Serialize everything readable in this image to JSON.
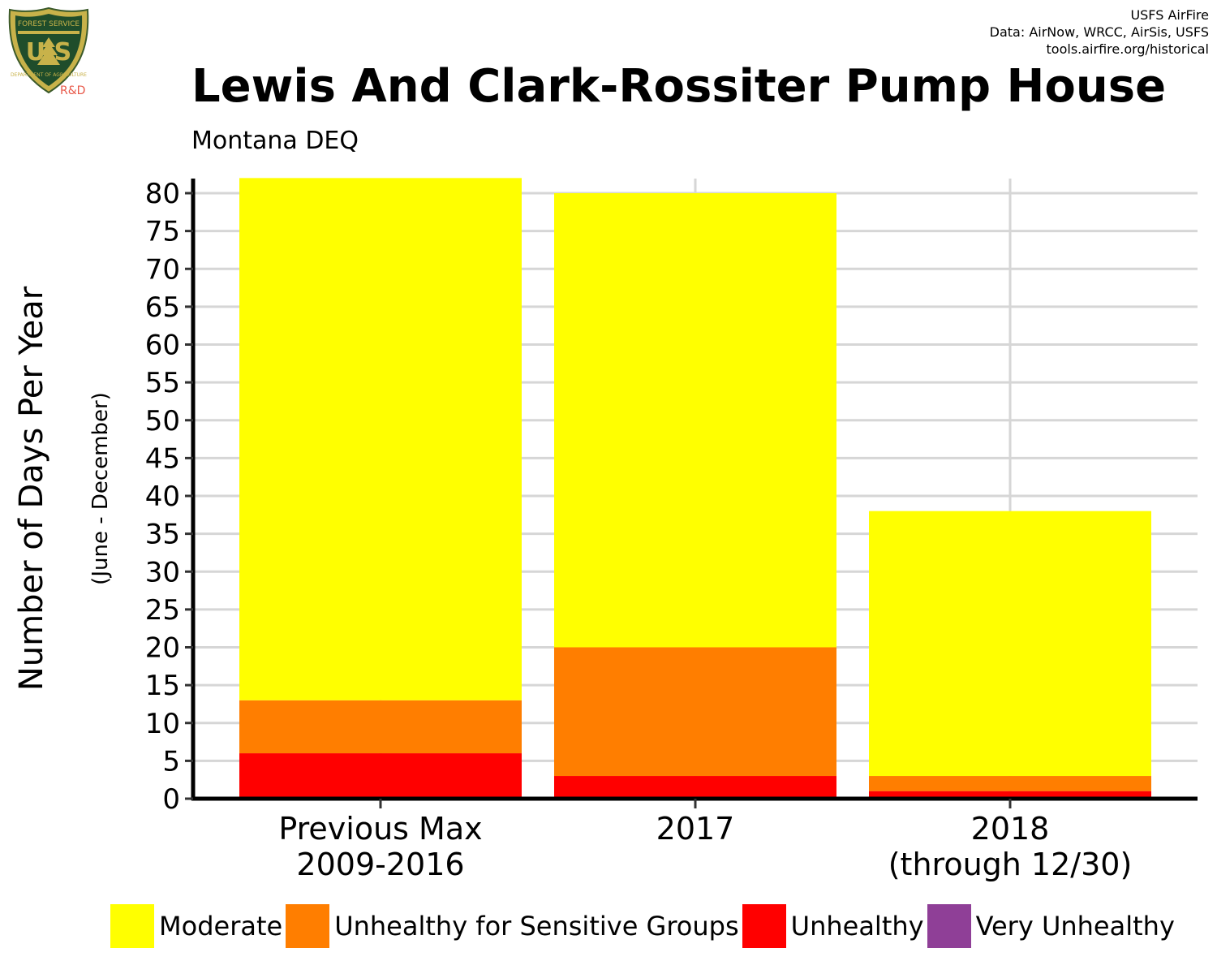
{
  "header": {
    "credits": [
      "USFS AirFire",
      "Data: AirNow, WRCC, AirSis, USFS",
      "tools.airfire.org/historical"
    ],
    "logo_text": "U S",
    "logo_tag": "R&D",
    "logo_ring_top": "FOREST SERVICE",
    "logo_ring_bottom": "DEPARTMENT OF AGRICULTURE"
  },
  "chart_data": {
    "type": "bar",
    "stacked": true,
    "title": "Lewis And Clark-Rossiter Pump House",
    "subtitle": "Montana DEQ",
    "ylabel": "Number of Days Per Year",
    "ylabel_sub": "(June - December)",
    "ylim": [
      0,
      82
    ],
    "yticks": [
      0,
      5,
      10,
      15,
      20,
      25,
      30,
      35,
      40,
      45,
      50,
      55,
      60,
      65,
      70,
      75,
      80
    ],
    "grid": true,
    "categories": [
      [
        "Previous Max",
        "2009-2016"
      ],
      [
        "2017"
      ],
      [
        "2018",
        "(through 12/30)"
      ]
    ],
    "series": [
      {
        "name": "Unhealthy",
        "color": "#ff0000",
        "values": [
          6,
          3,
          1
        ]
      },
      {
        "name": "Unhealthy for Sensitive Groups",
        "color": "#ff7e00",
        "values": [
          7,
          17,
          2
        ]
      },
      {
        "name": "Moderate",
        "color": "#ffff00",
        "values": [
          69,
          60,
          35
        ]
      }
    ],
    "legend": [
      {
        "name": "Moderate",
        "color": "#ffff00"
      },
      {
        "name": "Unhealthy for Sensitive Groups",
        "color": "#ff7e00"
      },
      {
        "name": "Unhealthy",
        "color": "#ff0000"
      },
      {
        "name": "Very Unhealthy",
        "color": "#8f3f97"
      }
    ],
    "legend_position": "bottom"
  }
}
